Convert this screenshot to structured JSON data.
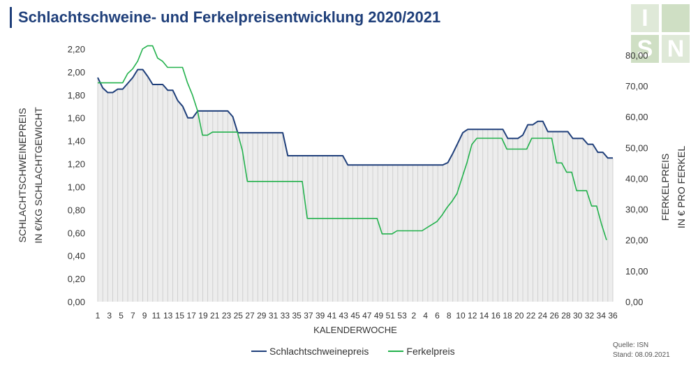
{
  "header": {
    "title": "Schlachtschweine- und Ferkelpreisentwicklung 2020/2021"
  },
  "logo": {
    "letters": [
      "I",
      "S",
      "N"
    ]
  },
  "source": {
    "line1": "Quelle: ISN",
    "line2": "Stand: 08.09.2021"
  },
  "colors": {
    "schlacht": "#1f3f7a",
    "ferkel": "#22b14c",
    "area": "#dedede",
    "title": "#1f3f7a"
  },
  "chart_data": {
    "type": "line",
    "xlabel": "KALENDERWOCHE",
    "ylabel_left": [
      "SCHLACHTSCHWEINEPREIS",
      "IN €/KG SCHLACHTGEWICHT"
    ],
    "ylabel_right": [
      "FERKELPREIS",
      "IN € PRO FERKEL"
    ],
    "x_tick_labels": [
      "1",
      "3",
      "5",
      "7",
      "9",
      "11",
      "13",
      "15",
      "17",
      "19",
      "21",
      "23",
      "25",
      "27",
      "29",
      "31",
      "33",
      "35",
      "37",
      "39",
      "41",
      "43",
      "45",
      "47",
      "49",
      "51",
      "53",
      "2",
      "4",
      "6",
      "8",
      "10",
      "12",
      "14",
      "16",
      "18",
      "20",
      "22",
      "24",
      "26",
      "28",
      "30",
      "32",
      "34",
      "36"
    ],
    "y_left_ticks": [
      "0,00",
      "0,20",
      "0,40",
      "0,60",
      "0,80",
      "1,00",
      "1,20",
      "1,40",
      "1,60",
      "1,80",
      "2,00",
      "2,20"
    ],
    "y_right_ticks": [
      "0,00",
      "10,00",
      "20,00",
      "30,00",
      "40,00",
      "50,00",
      "60,00",
      "70,00",
      "80,00"
    ],
    "ylim_left": [
      0,
      2.2
    ],
    "ylim_right": [
      0,
      82
    ],
    "grid": false,
    "legend_position": "bottom",
    "series": [
      {
        "name": "Schlachtschweinepreis",
        "axis": "left",
        "values": [
          1.95,
          1.86,
          1.82,
          1.82,
          1.85,
          1.85,
          1.9,
          1.95,
          2.02,
          2.02,
          1.96,
          1.89,
          1.89,
          1.89,
          1.84,
          1.84,
          1.75,
          1.7,
          1.6,
          1.6,
          1.66,
          1.66,
          1.66,
          1.66,
          1.66,
          1.66,
          1.66,
          1.61,
          1.47,
          1.47,
          1.47,
          1.47,
          1.47,
          1.47,
          1.47,
          1.47,
          1.47,
          1.47,
          1.27,
          1.27,
          1.27,
          1.27,
          1.27,
          1.27,
          1.27,
          1.27,
          1.27,
          1.27,
          1.27,
          1.27,
          1.19,
          1.19,
          1.19,
          1.19,
          1.19,
          1.19,
          1.19,
          1.19,
          1.19,
          1.19,
          1.19,
          1.19,
          1.19,
          1.19,
          1.19,
          1.19,
          1.19,
          1.19,
          1.19,
          1.19,
          1.21,
          1.29,
          1.38,
          1.47,
          1.5,
          1.5,
          1.5,
          1.5,
          1.5,
          1.5,
          1.5,
          1.5,
          1.42,
          1.42,
          1.42,
          1.45,
          1.54,
          1.54,
          1.57,
          1.57,
          1.48,
          1.48,
          1.48,
          1.48,
          1.48,
          1.42,
          1.42,
          1.42,
          1.37,
          1.37,
          1.3,
          1.3,
          1.25,
          1.25
        ]
      },
      {
        "name": "Ferkelpreis",
        "axis": "right",
        "values": [
          71,
          71,
          71,
          71,
          71,
          71,
          74,
          75.5,
          78,
          82,
          83,
          83,
          79,
          78,
          76,
          76,
          76,
          76,
          71,
          67,
          62,
          54,
          54,
          55,
          55,
          55,
          55,
          55,
          55,
          49,
          39,
          39,
          39,
          39,
          39,
          39,
          39,
          39,
          39,
          39,
          39,
          39,
          27,
          27,
          27,
          27,
          27,
          27,
          27,
          27,
          27,
          27,
          27,
          27,
          27,
          27,
          27,
          22,
          22,
          22,
          23,
          23,
          23,
          23,
          23,
          23,
          24,
          25,
          26,
          28,
          30.5,
          32.5,
          35,
          40,
          45,
          51,
          53,
          53,
          53,
          53,
          53,
          53,
          49.5,
          49.5,
          49.5,
          49.5,
          49.5,
          53,
          53,
          53,
          53,
          53,
          45,
          45,
          42,
          42,
          36,
          36,
          36,
          31,
          31,
          25,
          20
        ]
      }
    ]
  }
}
